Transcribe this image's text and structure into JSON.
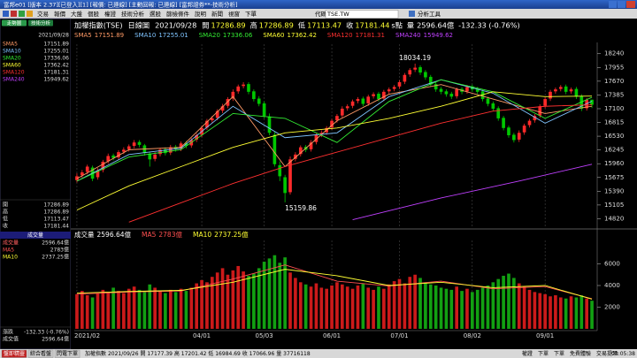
{
  "window": {
    "title": "富邦e01 [版本 2.37][已登入][1] [報價: 已連線] [主動回報: 已連線] [富邦證券**-技術分析]",
    "menu": [
      "交易",
      "報價",
      "大盤",
      "個股",
      "權證",
      "技術分析",
      "選股",
      "篩檢條件",
      "說明",
      "新聞",
      "視窗",
      "下單"
    ],
    "code_label": "代碼",
    "code": "TSE.TW",
    "tools": "分析工具"
  },
  "left_panel": {
    "tabs": [
      "走勢圖",
      "技術分析"
    ],
    "change_label": "漲跌",
    "turnover_label": "成交值"
  },
  "chart_data": [
    {
      "type": "candlestick",
      "title": "加權指數(TSE)",
      "period": "日線圖",
      "date": "2021/09/28",
      "open_label": "開",
      "high_label": "高",
      "low_label": "低",
      "close_label": "收",
      "unit": "s點",
      "volume_label": "量",
      "change_text": "-132.33 (-0.76%)",
      "up_color": "#ff2a2a",
      "down_color": "#00c800",
      "open": [
        15620,
        15720,
        15790,
        15880,
        15680,
        15830,
        16010,
        16130,
        16090,
        16210,
        16260,
        16330,
        16410,
        16340,
        16170,
        16060,
        16160,
        16260,
        16190,
        16310,
        16270,
        16390,
        16340,
        16460,
        16560,
        16710,
        16860,
        16910,
        17060,
        17160,
        17310,
        17460,
        17570,
        17610,
        17460,
        17310,
        17210,
        16940,
        16560,
        15930,
        15680,
        15370,
        16060,
        16160,
        16310,
        16260,
        16410,
        16560,
        16610,
        16710,
        16860,
        16960,
        17110,
        17160,
        17260,
        17310,
        17210,
        17360,
        17410,
        17310,
        17460,
        17510,
        17560,
        17660,
        17810,
        17910,
        17960,
        17860,
        17760,
        17610,
        17510,
        17460,
        17410,
        17360,
        17510,
        17460,
        17560,
        17510,
        17460,
        17310,
        17210,
        17110,
        16910,
        16710,
        16560,
        16460,
        16610,
        16760,
        16860,
        16960,
        17160,
        17310,
        17460,
        17510,
        17560,
        17460,
        17510,
        17360,
        17110,
        17286.89
      ],
      "high": [
        15760,
        15830,
        15940,
        15920,
        15870,
        16040,
        16170,
        16170,
        16240,
        16300,
        16360,
        16450,
        16450,
        16370,
        16210,
        16200,
        16290,
        16300,
        16350,
        16350,
        16420,
        16430,
        16490,
        16590,
        16750,
        16890,
        16950,
        17090,
        17200,
        17340,
        17500,
        17600,
        17650,
        17650,
        17500,
        17360,
        17250,
        17000,
        16620,
        16010,
        15730,
        16110,
        16200,
        16340,
        16350,
        16450,
        16590,
        16650,
        16740,
        16890,
        16990,
        17150,
        17190,
        17290,
        17340,
        17350,
        17390,
        17440,
        17450,
        17490,
        17540,
        17590,
        17690,
        17840,
        17940,
        18034.19,
        18000,
        17900,
        17800,
        17650,
        17550,
        17500,
        17450,
        17540,
        17550,
        17590,
        17600,
        17550,
        17500,
        17350,
        17250,
        17150,
        16950,
        16750,
        16600,
        16650,
        16790,
        16890,
        16990,
        17190,
        17340,
        17490,
        17540,
        17590,
        17600,
        17540,
        17550,
        17400,
        17320,
        17286.89
      ],
      "low": [
        15570,
        15670,
        15740,
        15600,
        15630,
        15780,
        15960,
        16030,
        16040,
        16160,
        16210,
        16280,
        16300,
        16130,
        15900,
        16010,
        16110,
        16130,
        16140,
        16210,
        16220,
        16280,
        16290,
        16410,
        16510,
        16660,
        16810,
        16860,
        17010,
        17110,
        17260,
        17410,
        17520,
        17400,
        17250,
        17150,
        16900,
        16550,
        15900,
        15600,
        15159.86,
        15320,
        16010,
        16110,
        16200,
        16210,
        16360,
        16510,
        16560,
        16660,
        16810,
        16910,
        17060,
        17110,
        17210,
        17150,
        17160,
        17310,
        17250,
        17260,
        17410,
        17460,
        17510,
        17610,
        17760,
        17860,
        17800,
        17700,
        17550,
        17450,
        17400,
        17350,
        17300,
        17310,
        17400,
        17410,
        17450,
        17400,
        17250,
        17150,
        17050,
        16850,
        16650,
        16500,
        16400,
        16410,
        16560,
        16710,
        16810,
        16910,
        17110,
        17260,
        17410,
        17460,
        17400,
        17410,
        17300,
        17050,
        17060,
        17113.47
      ],
      "close": [
        15700,
        15780,
        15900,
        15650,
        15820,
        16000,
        16120,
        16080,
        16200,
        16250,
        16320,
        16400,
        16350,
        16180,
        16050,
        16150,
        16250,
        16180,
        16300,
        16260,
        16380,
        16330,
        16450,
        16550,
        16700,
        16850,
        16900,
        17050,
        17150,
        17300,
        17450,
        17560,
        17600,
        17450,
        17300,
        17200,
        16950,
        16600,
        15950,
        15700,
        15353,
        16050,
        16150,
        16300,
        16250,
        16400,
        16550,
        16600,
        16700,
        16850,
        16950,
        17100,
        17150,
        17250,
        17300,
        17200,
        17350,
        17400,
        17300,
        17450,
        17500,
        17550,
        17650,
        17800,
        17900,
        17950,
        17850,
        17750,
        17600,
        17500,
        17450,
        17400,
        17350,
        17500,
        17450,
        17550,
        17500,
        17450,
        17300,
        17200,
        17100,
        16900,
        16700,
        16550,
        16450,
        16600,
        16750,
        16850,
        16950,
        17150,
        17300,
        17450,
        17500,
        17550,
        17450,
        17500,
        17350,
        17100,
        17280,
        17181.44
      ],
      "lines": [
        {
          "name": "SMA5",
          "color": "#ff9a66",
          "x": [
            0,
            10,
            20,
            30,
            40,
            50,
            60,
            70,
            80,
            90,
            99
          ],
          "values": [
            15650,
            16250,
            16300,
            17350,
            15900,
            16850,
            17400,
            17600,
            17300,
            17000,
            17151.89
          ]
        },
        {
          "name": "SMA10",
          "color": "#7fc4ff",
          "x": [
            0,
            10,
            20,
            30,
            40,
            50,
            60,
            70,
            80,
            90,
            99
          ],
          "values": [
            15600,
            16150,
            16280,
            17150,
            16500,
            16600,
            17350,
            17700,
            17420,
            16800,
            17255.01
          ]
        },
        {
          "name": "SMA20",
          "color": "#33ee33",
          "x": [
            0,
            10,
            20,
            30,
            40,
            50,
            60,
            70,
            80,
            90,
            99
          ],
          "values": [
            15600,
            16100,
            16250,
            17000,
            16900,
            16400,
            17250,
            17700,
            17450,
            16900,
            17336.06
          ]
        },
        {
          "name": "SMA60",
          "color": "#ffff33",
          "x": [
            0,
            10,
            20,
            30,
            40,
            50,
            60,
            70,
            80,
            90,
            99
          ],
          "values": [
            15000,
            15500,
            15900,
            16300,
            16600,
            16700,
            16900,
            17150,
            17450,
            17350,
            17362.42
          ]
        },
        {
          "name": "SMA120",
          "color": "#ff3030",
          "x": [
            10,
            20,
            30,
            40,
            50,
            60,
            70,
            80,
            90,
            99
          ],
          "values": [
            14750,
            15150,
            15550,
            15900,
            16200,
            16500,
            16800,
            17050,
            17150,
            17181.31
          ]
        },
        {
          "name": "SMA240",
          "color": "#c040ff",
          "x": [
            53,
            70,
            85,
            99
          ],
          "values": [
            14800,
            15250,
            15600,
            15949.62
          ]
        }
      ],
      "ylim": [
        14700,
        18400
      ],
      "yticks": [
        18240,
        17955,
        17670,
        17385,
        17100,
        16815,
        16530,
        16245,
        15960,
        15675,
        15390,
        15105,
        14820
      ]
    },
    {
      "type": "bar",
      "title": "成交量",
      "value_text": "2596.64億",
      "values": [
        3200,
        3500,
        3100,
        2900,
        3300,
        3600,
        3400,
        3800,
        3500,
        3300,
        3700,
        3900,
        3600,
        3400,
        4100,
        3800,
        3500,
        3300,
        3600,
        3400,
        3700,
        3500,
        3800,
        4200,
        4500,
        4300,
        4800,
        5200,
        5600,
        5000,
        5400,
        5800,
        5300,
        4900,
        5100,
        5600,
        6200,
        6500,
        6800,
        6100,
        6600,
        5200,
        4700,
        4300,
        4100,
        3900,
        4200,
        3800,
        3700,
        4000,
        4300,
        4100,
        3900,
        3700,
        4000,
        4200,
        3800,
        3600,
        3900,
        3700,
        4100,
        4400,
        4600,
        4200,
        4800,
        5000,
        4700,
        4300,
        4100,
        4000,
        3800,
        3700,
        3600,
        3900,
        3500,
        3700,
        3400,
        3600,
        3800,
        4000,
        4300,
        4600,
        4900,
        5100,
        4700,
        4200,
        3900,
        3600,
        3400,
        3300,
        3200,
        3000,
        3100,
        2900,
        2800,
        3000,
        2900,
        3100,
        2800,
        2596.64
      ],
      "lines": [
        {
          "name": "MA5",
          "color": "#ff5050",
          "x": [
            0,
            10,
            20,
            30,
            40,
            50,
            60,
            70,
            80,
            90,
            99
          ],
          "values": [
            3200,
            3400,
            3500,
            4600,
            5900,
            4400,
            3950,
            4400,
            3700,
            3900,
            2783
          ],
          "value_label": "2783億"
        },
        {
          "name": "MA10",
          "color": "#ffff33",
          "x": [
            0,
            10,
            20,
            30,
            40,
            50,
            60,
            70,
            80,
            90,
            99
          ],
          "values": [
            3300,
            3450,
            3550,
            4300,
            5500,
            4900,
            4000,
            4300,
            3800,
            4000,
            2737.25
          ],
          "value_label": "2737.25億"
        }
      ],
      "ylim": [
        0,
        8000
      ],
      "yticks": [
        6000,
        4000,
        2000
      ],
      "xticks": [
        {
          "value": 0,
          "label": "2021/02"
        },
        {
          "value": 24,
          "label": "04/01"
        },
        {
          "value": 36,
          "label": "05/03"
        },
        {
          "value": 49,
          "label": "06/01"
        },
        {
          "value": 62,
          "label": "07/01"
        },
        {
          "value": 76,
          "label": "08/02"
        },
        {
          "value": 90,
          "label": "09/01"
        }
      ]
    }
  ],
  "status_bar": {
    "left": [
      "盤即精靈",
      "綜合看盤",
      "閃電下單"
    ],
    "ticker": "加權指數 2021/09/26 開 17177.39 高 17201.42 低 16984.69 收 17066.96 量 37716118",
    "right": [
      "權證",
      "下單",
      "下單",
      "免費體驗",
      "交易提示"
    ],
    "time": "08:05:38"
  }
}
